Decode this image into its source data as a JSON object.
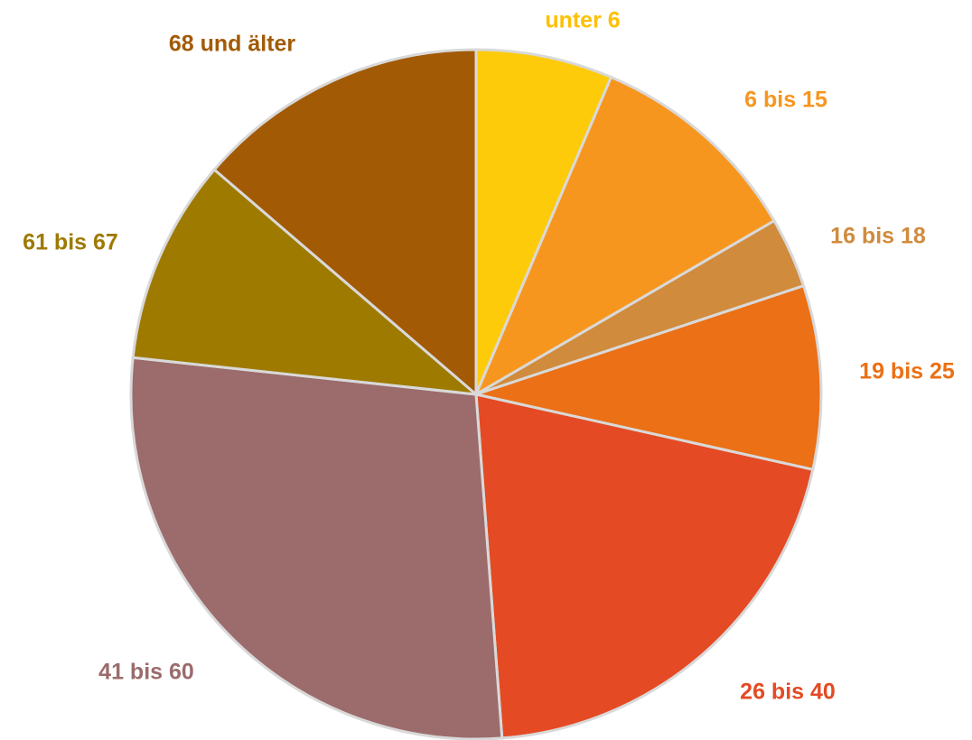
{
  "chart_data": {
    "type": "pie",
    "categories": [
      "unter 6",
      "6 bis 15",
      "16 bis 18",
      "19 bis 25",
      "26 bis 40",
      "41 bis 60",
      "61 bis 67",
      "68 und älter"
    ],
    "values": [
      6.4,
      10.2,
      3.3,
      8.6,
      20.3,
      27.9,
      9.6,
      13.7
    ],
    "colors": [
      "#fecb0b",
      "#f7961f",
      "#d08b3d",
      "#eb7016",
      "#e44a24",
      "#9c6b6b",
      "#9e7a00",
      "#a25a05"
    ],
    "label_colors": [
      "#ffc000",
      "#f7961f",
      "#d08b3d",
      "#eb7016",
      "#e44a24",
      "#9c6b6b",
      "#9e7a00",
      "#a25a05"
    ]
  }
}
